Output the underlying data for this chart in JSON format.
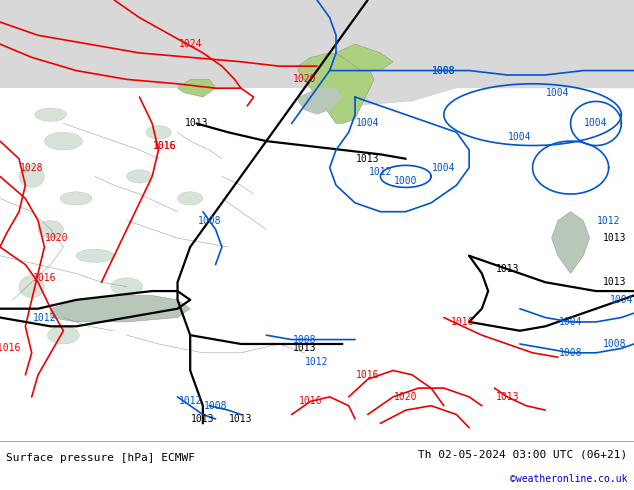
{
  "title_left": "Surface pressure [hPa] ECMWF",
  "title_right": "Th 02-05-2024 03:00 UTC (06+21)",
  "copyright": "©weatheronline.co.uk",
  "figsize": [
    6.34,
    4.9
  ],
  "dpi": 100,
  "land_color": "#aad080",
  "sea_color": "#c8e8c8",
  "polar_color": "#d8d8d8",
  "coast_color": "#888888",
  "footer_fontsize": 8,
  "copyright_color": "#0000cc",
  "title_color": "#000000",
  "black_lw": 1.6,
  "red_lw": 1.2,
  "blue_lw": 1.2,
  "black_color": "#000000",
  "red_color": "#ee0000",
  "blue_color": "#0055cc",
  "label_fs": 7
}
